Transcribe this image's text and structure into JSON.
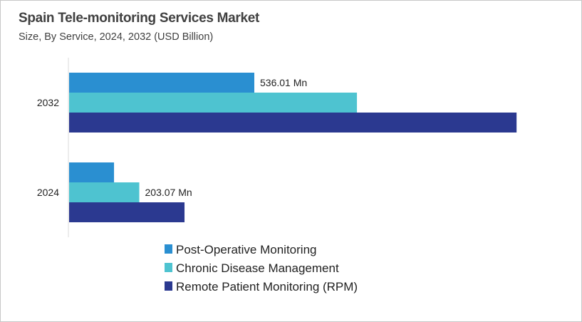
{
  "chart_data": {
    "type": "bar",
    "orientation": "horizontal",
    "title": "Spain Tele-monitoring Services Market",
    "subtitle": "Size, By Service, 2024, 2032 (USD Billion)",
    "categories": [
      "2032",
      "2024"
    ],
    "series": [
      {
        "name": "Post-Operative Monitoring",
        "color": "#2a8fd1",
        "values": [
          536.01,
          130
        ]
      },
      {
        "name": "Chronic Disease Management",
        "color": "#4ec3d0",
        "values": [
          833,
          203.07
        ]
      },
      {
        "name": "Remote Patient Monitoring (RPM)",
        "color": "#2b3990",
        "values": [
          1295,
          334
        ]
      }
    ],
    "data_labels": [
      {
        "category": "2032",
        "series": "Post-Operative Monitoring",
        "text": "536.01 Mn"
      },
      {
        "category": "2024",
        "series": "Chronic Disease Management",
        "text": "203.07 Mn"
      }
    ],
    "xlabel": "",
    "ylabel": "",
    "grid": false,
    "legend": "bottom"
  }
}
